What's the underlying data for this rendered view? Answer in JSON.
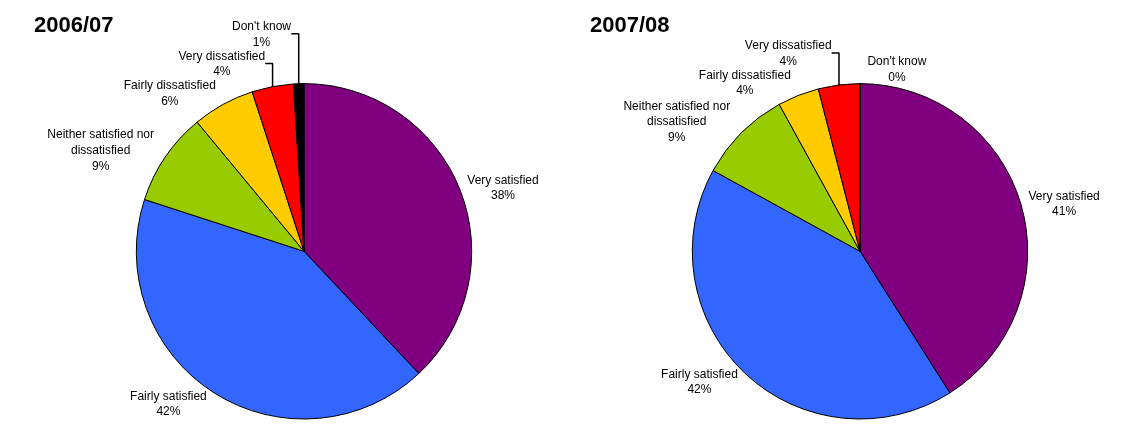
{
  "chart_data": [
    {
      "type": "pie",
      "title": "2006/07",
      "categories": [
        "Very satisfied",
        "Fairly satisfied",
        "Neither satisfied nor dissatisfied",
        "Fairly dissatisfied",
        "Very dissatisfied",
        "Don't know"
      ],
      "values": [
        38,
        42,
        9,
        6,
        4,
        1
      ],
      "value_labels": [
        "38%",
        "42%",
        "9%",
        "6%",
        "4%",
        "1%"
      ],
      "colors": [
        "#800080",
        "#3366ff",
        "#99cc00",
        "#ffcc00",
        "#ff0000",
        "#000000"
      ],
      "legend": false
    },
    {
      "type": "pie",
      "title": "2007/08",
      "categories": [
        "Very satisfied",
        "Fairly satisfied",
        "Neither satisfied nor dissatisfied",
        "Fairly dissatisfied",
        "Very dissatisfied",
        "Don't know"
      ],
      "values": [
        41,
        42,
        9,
        4,
        4,
        0
      ],
      "value_labels": [
        "41%",
        "42%",
        "9%",
        "4%",
        "4%",
        "0%"
      ],
      "colors": [
        "#800080",
        "#3366ff",
        "#99cc00",
        "#ffcc00",
        "#ff0000",
        "#000000"
      ],
      "legend": false
    }
  ]
}
